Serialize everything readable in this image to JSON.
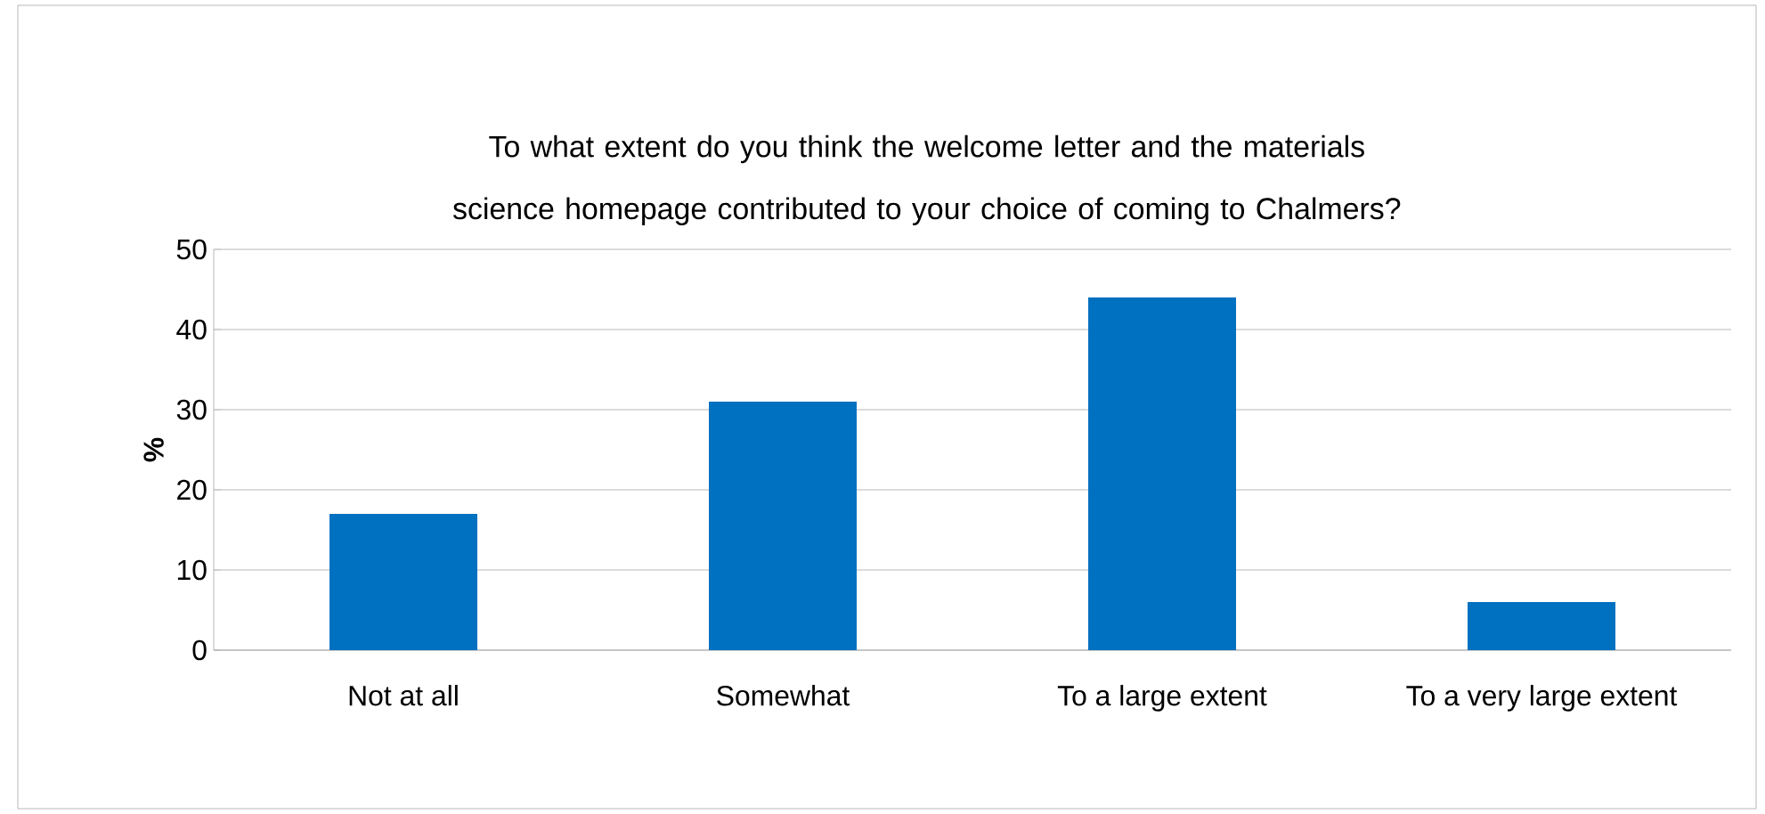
{
  "chart_data": {
    "type": "bar",
    "title": "To what extent do you think the welcome letter and the materials science homepage contributed to your choice of coming to Chalmers?",
    "ylabel": "%",
    "categories": [
      "Not at all",
      "Somewhat",
      "To a large extent",
      "To a very large extent"
    ],
    "values": [
      17,
      31,
      44,
      6
    ],
    "color": "#0070c0",
    "ylim": [
      0,
      50
    ],
    "yticks": [
      0,
      10,
      20,
      30,
      40,
      50
    ],
    "grid": "y"
  }
}
